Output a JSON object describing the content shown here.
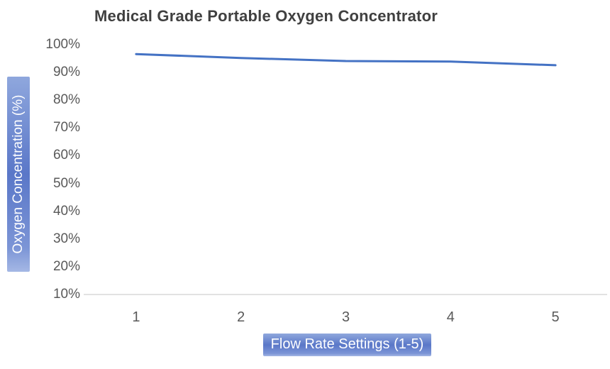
{
  "chart_data": {
    "type": "line",
    "title": "Medical Grade Portable Oxygen Concentrator",
    "xlabel": "Flow Rate Settings (1-5)",
    "ylabel": "Oxygen Concentration (%)",
    "categories": [
      "1",
      "2",
      "3",
      "4",
      "5"
    ],
    "values": [
      96.5,
      95.1,
      94.0,
      93.8,
      92.5
    ],
    "y_ticks": [
      "100%",
      "90%",
      "80%",
      "70%",
      "60%",
      "50%",
      "40%",
      "30%",
      "20%",
      "10%"
    ],
    "y_tick_values": [
      100,
      90,
      80,
      70,
      60,
      50,
      40,
      30,
      20,
      10
    ],
    "ylim": [
      10,
      100
    ],
    "grid": false,
    "legend": "none"
  },
  "colors": {
    "line": "#4472C4",
    "axis_line": "#D9D9D9",
    "tick_text": "#595959",
    "title_text": "#404040",
    "label_fill_light": "#8FA7DD",
    "label_fill_dark": "#5A77C8"
  }
}
